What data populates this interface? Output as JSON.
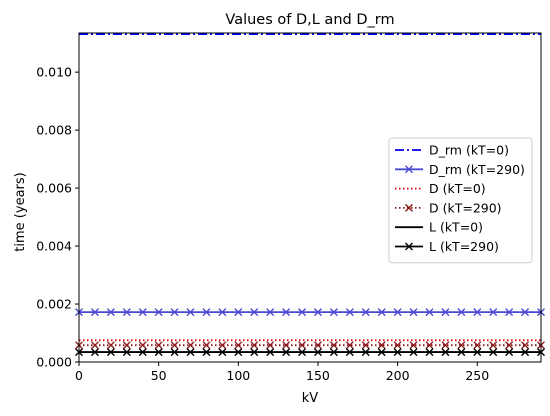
{
  "chart_data": {
    "type": "line",
    "title": "Values of D,L and D_rm",
    "xlabel": "kV",
    "ylabel": "time (years)",
    "xlim": [
      0,
      290
    ],
    "ylim": [
      0,
      0.01135
    ],
    "x_ticks": [
      0,
      50,
      100,
      150,
      200,
      250
    ],
    "x_tick_labels": [
      "0",
      "50",
      "100",
      "150",
      "200",
      "250"
    ],
    "y_ticks": [
      0.0,
      0.002,
      0.004,
      0.006,
      0.008,
      0.01
    ],
    "y_tick_labels": [
      "0.000",
      "0.002",
      "0.004",
      "0.006",
      "0.008",
      "0.010"
    ],
    "grid": false,
    "legend_position": "center-right",
    "x": [
      0,
      10,
      20,
      30,
      40,
      50,
      60,
      70,
      80,
      90,
      100,
      110,
      120,
      130,
      140,
      150,
      160,
      170,
      180,
      190,
      200,
      210,
      220,
      230,
      240,
      250,
      260,
      270,
      280,
      290
    ],
    "series": [
      {
        "name": "D_rm (kT=0)",
        "value": 0.01131,
        "color": "#0000ff",
        "linestyle": "dashdot",
        "marker": "none"
      },
      {
        "name": "D_rm (kT=290)",
        "value": 0.00172,
        "color": "#4a4ad6",
        "linestyle": "solid",
        "marker": "x"
      },
      {
        "name": "D (kT=0)",
        "value": 0.00075,
        "color": "#e00000",
        "linestyle": "dotted",
        "marker": "none"
      },
      {
        "name": "D (kT=290)",
        "value": 0.00058,
        "color": "#8b1a1a",
        "linestyle": "dotted",
        "marker": "x"
      },
      {
        "name": "L (kT=0)",
        "value": 0.00034,
        "color": "#000000",
        "linestyle": "solid",
        "marker": "none"
      },
      {
        "name": "L (kT=290)",
        "value": 0.00034,
        "color": "#000000",
        "linestyle": "solid",
        "marker": "x"
      }
    ]
  }
}
